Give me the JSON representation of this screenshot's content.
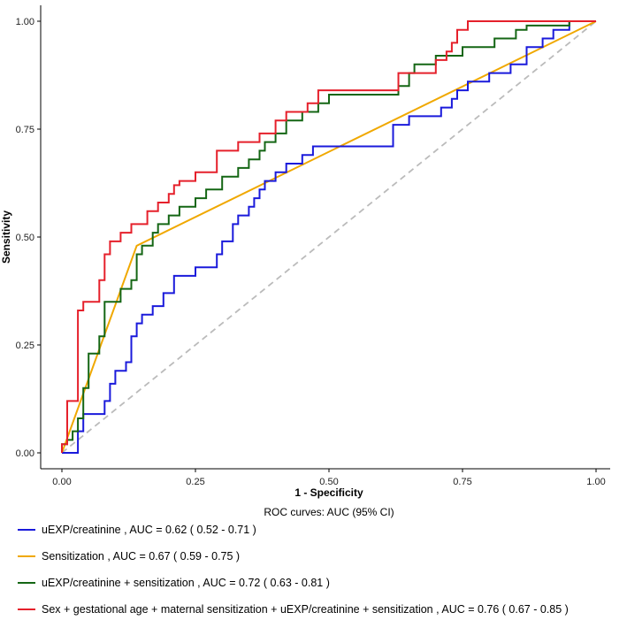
{
  "chart_data": {
    "type": "line",
    "title": "",
    "xlabel": "1 - Specificity",
    "ylabel": "Sensitivity",
    "xlim": [
      0,
      1
    ],
    "ylim": [
      0,
      1
    ],
    "x_ticks": [
      "0.00",
      "0.25",
      "0.50",
      "0.75",
      "1.00"
    ],
    "y_ticks": [
      "0.00",
      "0.25",
      "0.50",
      "0.75",
      "1.00"
    ],
    "grid": false,
    "legend_position": "bottom",
    "legend_title": "ROC curves: AUC (95% CI)",
    "reference_line": {
      "style": "dashed",
      "color": "#bbbbbb",
      "from": [
        0,
        0
      ],
      "to": [
        1,
        1
      ]
    },
    "series": [
      {
        "name": "uEXP/creatinine , AUC = 0.62 ( 0.52 - 0.71 )",
        "color": "#1a1adb",
        "points": [
          [
            0,
            0
          ],
          [
            0.03,
            0
          ],
          [
            0.03,
            0.05
          ],
          [
            0.04,
            0.05
          ],
          [
            0.04,
            0.09
          ],
          [
            0.08,
            0.09
          ],
          [
            0.08,
            0.12
          ],
          [
            0.09,
            0.12
          ],
          [
            0.09,
            0.16
          ],
          [
            0.1,
            0.16
          ],
          [
            0.1,
            0.19
          ],
          [
            0.12,
            0.19
          ],
          [
            0.12,
            0.21
          ],
          [
            0.13,
            0.21
          ],
          [
            0.13,
            0.27
          ],
          [
            0.14,
            0.27
          ],
          [
            0.14,
            0.3
          ],
          [
            0.15,
            0.3
          ],
          [
            0.15,
            0.32
          ],
          [
            0.17,
            0.32
          ],
          [
            0.17,
            0.34
          ],
          [
            0.19,
            0.34
          ],
          [
            0.19,
            0.37
          ],
          [
            0.21,
            0.37
          ],
          [
            0.21,
            0.41
          ],
          [
            0.25,
            0.41
          ],
          [
            0.25,
            0.43
          ],
          [
            0.27,
            0.43
          ],
          [
            0.29,
            0.43
          ],
          [
            0.29,
            0.46
          ],
          [
            0.3,
            0.46
          ],
          [
            0.3,
            0.49
          ],
          [
            0.32,
            0.49
          ],
          [
            0.32,
            0.53
          ],
          [
            0.33,
            0.53
          ],
          [
            0.33,
            0.55
          ],
          [
            0.35,
            0.55
          ],
          [
            0.35,
            0.57
          ],
          [
            0.36,
            0.57
          ],
          [
            0.36,
            0.59
          ],
          [
            0.37,
            0.59
          ],
          [
            0.37,
            0.61
          ],
          [
            0.38,
            0.61
          ],
          [
            0.38,
            0.63
          ],
          [
            0.4,
            0.63
          ],
          [
            0.4,
            0.65
          ],
          [
            0.42,
            0.65
          ],
          [
            0.42,
            0.67
          ],
          [
            0.45,
            0.67
          ],
          [
            0.45,
            0.69
          ],
          [
            0.47,
            0.69
          ],
          [
            0.47,
            0.71
          ],
          [
            0.62,
            0.71
          ],
          [
            0.62,
            0.76
          ],
          [
            0.65,
            0.76
          ],
          [
            0.65,
            0.78
          ],
          [
            0.71,
            0.78
          ],
          [
            0.71,
            0.8
          ],
          [
            0.73,
            0.8
          ],
          [
            0.73,
            0.82
          ],
          [
            0.74,
            0.82
          ],
          [
            0.74,
            0.84
          ],
          [
            0.76,
            0.84
          ],
          [
            0.76,
            0.86
          ],
          [
            0.8,
            0.86
          ],
          [
            0.8,
            0.88
          ],
          [
            0.84,
            0.88
          ],
          [
            0.84,
            0.9
          ],
          [
            0.87,
            0.9
          ],
          [
            0.87,
            0.94
          ],
          [
            0.9,
            0.94
          ],
          [
            0.9,
            0.96
          ],
          [
            0.92,
            0.96
          ],
          [
            0.92,
            0.98
          ],
          [
            0.95,
            0.98
          ],
          [
            0.95,
            1.0
          ],
          [
            1.0,
            1.0
          ]
        ]
      },
      {
        "name": "Sensitization , AUC = 0.67 ( 0.59 - 0.75 )",
        "color": "#f0a800",
        "points": [
          [
            0,
            0
          ],
          [
            0.14,
            0.48
          ],
          [
            1.0,
            1.0
          ]
        ]
      },
      {
        "name": "uEXP/creatinine + sensitization , AUC = 0.72 ( 0.63 - 0.81 )",
        "color": "#146614",
        "points": [
          [
            0,
            0
          ],
          [
            0,
            0.02
          ],
          [
            0.01,
            0.02
          ],
          [
            0.01,
            0.03
          ],
          [
            0.02,
            0.03
          ],
          [
            0.02,
            0.05
          ],
          [
            0.03,
            0.05
          ],
          [
            0.03,
            0.08
          ],
          [
            0.04,
            0.08
          ],
          [
            0.04,
            0.1
          ],
          [
            0.04,
            0.15
          ],
          [
            0.05,
            0.15
          ],
          [
            0.05,
            0.23
          ],
          [
            0.07,
            0.23
          ],
          [
            0.07,
            0.27
          ],
          [
            0.08,
            0.27
          ],
          [
            0.08,
            0.35
          ],
          [
            0.11,
            0.35
          ],
          [
            0.11,
            0.38
          ],
          [
            0.13,
            0.38
          ],
          [
            0.13,
            0.4
          ],
          [
            0.14,
            0.4
          ],
          [
            0.14,
            0.46
          ],
          [
            0.15,
            0.46
          ],
          [
            0.15,
            0.48
          ],
          [
            0.17,
            0.48
          ],
          [
            0.17,
            0.51
          ],
          [
            0.18,
            0.51
          ],
          [
            0.18,
            0.53
          ],
          [
            0.2,
            0.53
          ],
          [
            0.2,
            0.55
          ],
          [
            0.22,
            0.55
          ],
          [
            0.22,
            0.57
          ],
          [
            0.25,
            0.57
          ],
          [
            0.25,
            0.59
          ],
          [
            0.27,
            0.59
          ],
          [
            0.27,
            0.61
          ],
          [
            0.3,
            0.61
          ],
          [
            0.3,
            0.64
          ],
          [
            0.33,
            0.64
          ],
          [
            0.33,
            0.66
          ],
          [
            0.35,
            0.66
          ],
          [
            0.35,
            0.68
          ],
          [
            0.37,
            0.68
          ],
          [
            0.37,
            0.7
          ],
          [
            0.38,
            0.7
          ],
          [
            0.38,
            0.72
          ],
          [
            0.4,
            0.72
          ],
          [
            0.4,
            0.74
          ],
          [
            0.42,
            0.74
          ],
          [
            0.42,
            0.77
          ],
          [
            0.45,
            0.77
          ],
          [
            0.45,
            0.79
          ],
          [
            0.48,
            0.79
          ],
          [
            0.48,
            0.81
          ],
          [
            0.5,
            0.81
          ],
          [
            0.5,
            0.83
          ],
          [
            0.55,
            0.83
          ],
          [
            0.63,
            0.83
          ],
          [
            0.63,
            0.85
          ],
          [
            0.65,
            0.85
          ],
          [
            0.65,
            0.88
          ],
          [
            0.66,
            0.88
          ],
          [
            0.66,
            0.9
          ],
          [
            0.7,
            0.9
          ],
          [
            0.7,
            0.92
          ],
          [
            0.75,
            0.92
          ],
          [
            0.75,
            0.94
          ],
          [
            0.81,
            0.94
          ],
          [
            0.81,
            0.96
          ],
          [
            0.85,
            0.96
          ],
          [
            0.85,
            0.98
          ],
          [
            0.87,
            0.98
          ],
          [
            0.87,
            0.99
          ],
          [
            0.95,
            0.99
          ],
          [
            0.95,
            1.0
          ],
          [
            1.0,
            1.0
          ]
        ]
      },
      {
        "name": "Sex + gestational age + maternal sensitization + uEXP/creatinine + sensitization , AUC = 0.76 ( 0.67 - 0.85 )",
        "color": "#e5202b",
        "points": [
          [
            0,
            0
          ],
          [
            0,
            0.02
          ],
          [
            0.01,
            0.02
          ],
          [
            0.01,
            0.12
          ],
          [
            0.03,
            0.12
          ],
          [
            0.03,
            0.33
          ],
          [
            0.04,
            0.33
          ],
          [
            0.04,
            0.35
          ],
          [
            0.07,
            0.35
          ],
          [
            0.07,
            0.4
          ],
          [
            0.08,
            0.4
          ],
          [
            0.08,
            0.46
          ],
          [
            0.09,
            0.46
          ],
          [
            0.09,
            0.49
          ],
          [
            0.11,
            0.49
          ],
          [
            0.11,
            0.51
          ],
          [
            0.13,
            0.51
          ],
          [
            0.13,
            0.53
          ],
          [
            0.16,
            0.53
          ],
          [
            0.16,
            0.56
          ],
          [
            0.18,
            0.56
          ],
          [
            0.18,
            0.58
          ],
          [
            0.2,
            0.58
          ],
          [
            0.2,
            0.6
          ],
          [
            0.21,
            0.6
          ],
          [
            0.21,
            0.62
          ],
          [
            0.22,
            0.62
          ],
          [
            0.22,
            0.63
          ],
          [
            0.25,
            0.63
          ],
          [
            0.25,
            0.65
          ],
          [
            0.29,
            0.65
          ],
          [
            0.29,
            0.7
          ],
          [
            0.33,
            0.7
          ],
          [
            0.33,
            0.72
          ],
          [
            0.37,
            0.72
          ],
          [
            0.37,
            0.74
          ],
          [
            0.4,
            0.74
          ],
          [
            0.4,
            0.77
          ],
          [
            0.42,
            0.77
          ],
          [
            0.42,
            0.79
          ],
          [
            0.46,
            0.79
          ],
          [
            0.46,
            0.81
          ],
          [
            0.48,
            0.81
          ],
          [
            0.48,
            0.84
          ],
          [
            0.51,
            0.84
          ],
          [
            0.51,
            0.84
          ],
          [
            0.63,
            0.84
          ],
          [
            0.63,
            0.88
          ],
          [
            0.66,
            0.88
          ],
          [
            0.66,
            0.88
          ],
          [
            0.7,
            0.88
          ],
          [
            0.7,
            0.91
          ],
          [
            0.72,
            0.91
          ],
          [
            0.72,
            0.93
          ],
          [
            0.73,
            0.93
          ],
          [
            0.73,
            0.95
          ],
          [
            0.74,
            0.95
          ],
          [
            0.74,
            0.98
          ],
          [
            0.76,
            0.98
          ],
          [
            0.76,
            1.0
          ],
          [
            1.0,
            1.0
          ]
        ]
      }
    ]
  }
}
